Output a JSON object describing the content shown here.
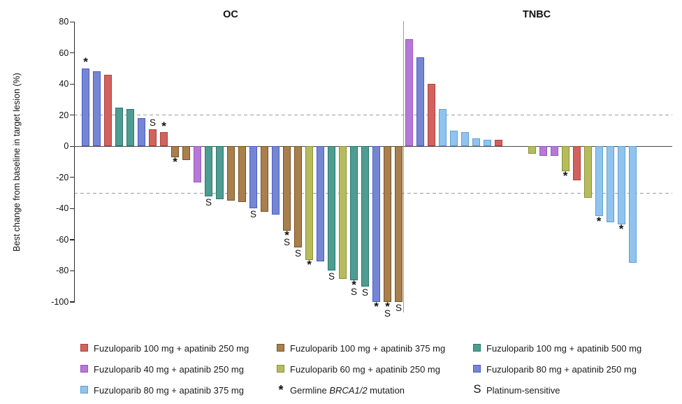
{
  "chart_data": {
    "type": "bar",
    "subtype": "waterfall",
    "ylabel": "Best change from baseline in target lesion (%)",
    "ylim": [
      -100,
      80
    ],
    "yticks": [
      80,
      60,
      40,
      20,
      0,
      -20,
      -40,
      -60,
      -80,
      -100
    ],
    "reference_lines": [
      20,
      -30
    ],
    "grid": "dashed-horizontal-thresholds-only",
    "legend_position": "bottom",
    "marker_meaning": {
      "asterisk": "Germline BRCA1/2 mutation",
      "S": "Platinum-sensitive"
    },
    "panels": [
      {
        "title": "OC",
        "bars": [
          {
            "value": 50,
            "color": "blue",
            "marker": "*"
          },
          {
            "value": 48,
            "color": "blue"
          },
          {
            "value": 46,
            "color": "red"
          },
          {
            "value": 25,
            "color": "teal"
          },
          {
            "value": 24,
            "color": "teal"
          },
          {
            "value": 18,
            "color": "blue"
          },
          {
            "value": 11,
            "color": "red",
            "marker": "S"
          },
          {
            "value": 9,
            "color": "red",
            "marker": "*"
          },
          {
            "value": -7,
            "color": "brown",
            "marker": "*"
          },
          {
            "value": -9,
            "color": "brown"
          },
          {
            "value": -23,
            "color": "purple"
          },
          {
            "value": -32,
            "color": "teal",
            "marker": "S"
          },
          {
            "value": -34,
            "color": "teal"
          },
          {
            "value": -35,
            "color": "brown"
          },
          {
            "value": -36,
            "color": "brown"
          },
          {
            "value": -40,
            "color": "blue",
            "marker": "S"
          },
          {
            "value": -42,
            "color": "brown"
          },
          {
            "value": -44,
            "color": "blue"
          },
          {
            "value": -54,
            "color": "brown",
            "marker": "*S"
          },
          {
            "value": -65,
            "color": "brown",
            "marker": "S"
          },
          {
            "value": -73,
            "color": "olive",
            "marker": "*"
          },
          {
            "value": -74,
            "color": "blue"
          },
          {
            "value": -80,
            "color": "teal",
            "marker": "S"
          },
          {
            "value": -85,
            "color": "olive"
          },
          {
            "value": -86,
            "color": "teal",
            "marker": "*S"
          },
          {
            "value": -90,
            "color": "teal",
            "marker": "S"
          },
          {
            "value": -100,
            "color": "blue",
            "marker": "*"
          },
          {
            "value": -100,
            "color": "brown",
            "marker": "*S"
          },
          {
            "value": -100,
            "color": "brown",
            "marker": "S"
          }
        ]
      },
      {
        "title": "TNBC",
        "bars": [
          {
            "value": 69,
            "color": "purple"
          },
          {
            "value": 57,
            "color": "blue"
          },
          {
            "value": 40,
            "color": "red"
          },
          {
            "value": 24,
            "color": "sky"
          },
          {
            "value": 10,
            "color": "sky"
          },
          {
            "value": 9,
            "color": "sky"
          },
          {
            "value": 5,
            "color": "sky"
          },
          {
            "value": 4,
            "color": "sky"
          },
          {
            "value": 4,
            "color": "red"
          },
          {
            "value": 0,
            "color": null,
            "gap": true
          },
          {
            "value": 0,
            "color": null,
            "gap": true
          },
          {
            "value": -5,
            "color": "olive"
          },
          {
            "value": -6,
            "color": "purple"
          },
          {
            "value": -6,
            "color": "purple"
          },
          {
            "value": -16,
            "color": "olive",
            "marker": "*"
          },
          {
            "value": -22,
            "color": "red"
          },
          {
            "value": -33,
            "color": "olive"
          },
          {
            "value": -45,
            "color": "sky",
            "marker": "*"
          },
          {
            "value": -49,
            "color": "sky"
          },
          {
            "value": -50,
            "color": "sky",
            "marker": "*"
          },
          {
            "value": -75,
            "color": "sky"
          }
        ]
      }
    ],
    "legend": [
      {
        "type": "swatch",
        "color": "red",
        "label": "Fuzuloparib 100 mg + apatinib 250 mg"
      },
      {
        "type": "swatch",
        "color": "brown",
        "label": "Fuzuloparib 100 mg + apatinib 375 mg"
      },
      {
        "type": "swatch",
        "color": "teal",
        "label": "Fuzuloparib 100 mg + apatinib 500 mg"
      },
      {
        "type": "swatch",
        "color": "purple",
        "label": "Fuzuloparib 40 mg + apatinib 250 mg"
      },
      {
        "type": "swatch",
        "color": "olive",
        "label": "Fuzuloparib 60 mg + apatinib 250 mg"
      },
      {
        "type": "swatch",
        "color": "blue",
        "label": "Fuzuloparib 80 mg + apatinib 250 mg"
      },
      {
        "type": "swatch",
        "color": "sky",
        "label": "Fuzuloparib 80 mg + apatinib 375 mg"
      },
      {
        "type": "asterisk",
        "symbol": "*",
        "label": "Germline BRCA1/2 mutation",
        "italic": "BRCA1/2"
      },
      {
        "type": "s",
        "symbol": "S",
        "label": "Platinum-sensitive"
      }
    ],
    "colors": {
      "red": {
        "fill": "#D2625D",
        "stroke": "#B13F3B"
      },
      "brown": {
        "fill": "#A97F4E",
        "stroke": "#78521F"
      },
      "teal": {
        "fill": "#4E9C92",
        "stroke": "#28786D"
      },
      "purple": {
        "fill": "#B47AD6",
        "stroke": "#9D52C9"
      },
      "olive": {
        "fill": "#B6BC5C",
        "stroke": "#899130"
      },
      "blue": {
        "fill": "#7587D3",
        "stroke": "#4A5ACA"
      },
      "sky": {
        "fill": "#90C4EE",
        "stroke": "#5C9FD6"
      }
    }
  }
}
